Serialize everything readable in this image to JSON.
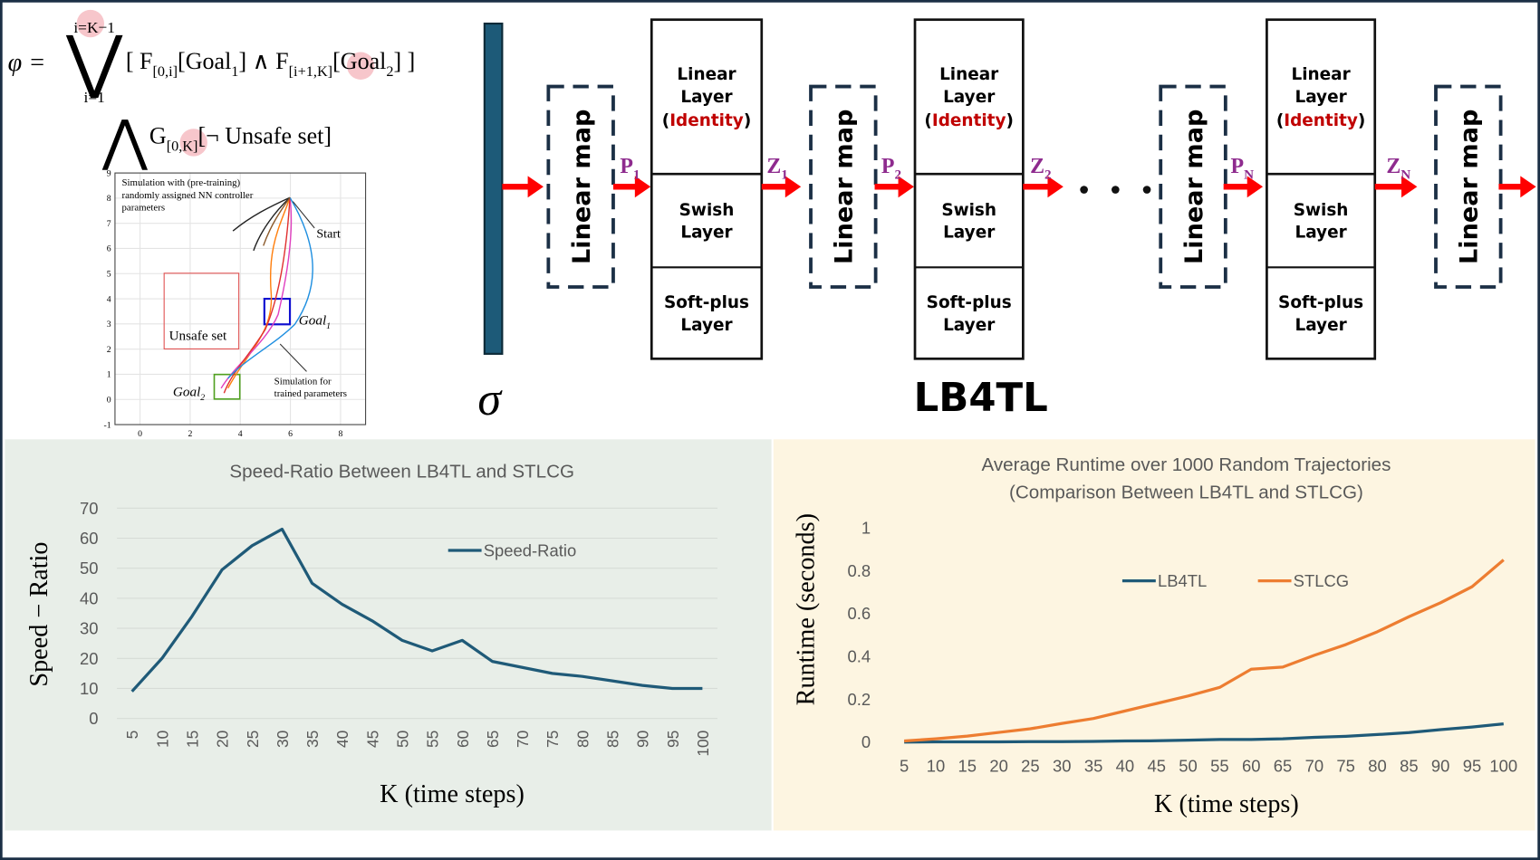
{
  "formula": {
    "phi": "φ =",
    "vee": "⋁",
    "upper": "i=K−1",
    "lower": "i=1",
    "expr1": [
      {
        "text": "[ F"
      },
      {
        "sub": "[0,i]"
      },
      {
        "text": "[Goal"
      },
      {
        "sub": "1"
      },
      {
        "text": "] ∧ F"
      },
      {
        "sub": "[i+1,K]"
      },
      {
        "text": "[Goal"
      },
      {
        "sub": "2"
      },
      {
        "text": "] ]"
      }
    ],
    "wedge": "⋀",
    "expr2": [
      {
        "text": "G"
      },
      {
        "sub": "[0,K]"
      },
      {
        "text": "[¬ Unsafe set]"
      }
    ]
  },
  "inset": {
    "xlim": [
      -1,
      9
    ],
    "ylim": [
      -1,
      9
    ],
    "xticks": [
      0,
      2,
      4,
      6,
      8
    ],
    "yticks": [
      -1,
      0,
      1,
      2,
      3,
      4,
      5,
      6,
      7,
      8,
      9
    ],
    "pretraining_note": [
      "Simulation with (pre-training)",
      "randomly assigned NN controller",
      "parameters"
    ],
    "start": "Start",
    "goal1": [
      {
        "text": "Goal"
      },
      {
        "sub": "1"
      }
    ],
    "unsafe": "Unsafe set",
    "trained_note": [
      "Simulation for",
      "trained parameters"
    ],
    "goal2": [
      {
        "text": "Goal"
      },
      {
        "sub": "2"
      }
    ]
  },
  "diagram": {
    "sigma": "σ",
    "title": "LB4TL",
    "linear_map": "Linear map",
    "linear_layer": [
      "Linear",
      "Layer"
    ],
    "identity": {
      "open": "(",
      "word": "Identity",
      "close": ")"
    },
    "swish": [
      "Swish",
      "Layer"
    ],
    "softplus": [
      "Soft-plus",
      "Layer"
    ],
    "labels": [
      {
        "main": "P",
        "sub": "1"
      },
      {
        "main": "Z",
        "sub": "1"
      },
      {
        "main": "P",
        "sub": "2"
      },
      {
        "main": "Z",
        "sub": "2"
      },
      {
        "main": "P",
        "sub": "N"
      },
      {
        "main": "Z",
        "sub": "N"
      }
    ]
  },
  "chart_data": [
    {
      "type": "line",
      "title": "Speed-Ratio Between LB4TL and STLCG",
      "x_label": "K (time steps)",
      "y_label": "Speed − Ratio",
      "categories": [
        "5",
        "10",
        "15",
        "20",
        "25",
        "30",
        "35",
        "40",
        "45",
        "50",
        "55",
        "60",
        "65",
        "70",
        "75",
        "80",
        "85",
        "90",
        "95",
        "100"
      ],
      "series": [
        {
          "name": "Speed-Ratio",
          "color": "#1f5a78",
          "values": [
            9,
            20,
            34,
            49.5,
            57.5,
            63,
            45,
            38,
            32.5,
            26,
            22.5,
            26,
            19,
            17,
            15,
            14,
            12.5,
            11,
            10,
            10
          ]
        }
      ],
      "ylim": [
        0,
        70
      ],
      "yticks": [
        0,
        10,
        20,
        30,
        40,
        50,
        60,
        70
      ],
      "grid": true
    },
    {
      "type": "line",
      "title": "Average Runtime over 1000 Random Trajectories",
      "subtitle": "(Comparison Between LB4TL and STLCG)",
      "x_label": "K (time steps)",
      "y_label": "Runtime  (seconds)",
      "categories": [
        "5",
        "10",
        "15",
        "20",
        "25",
        "30",
        "35",
        "40",
        "45",
        "50",
        "55",
        "60",
        "65",
        "70",
        "75",
        "80",
        "85",
        "90",
        "95",
        "100"
      ],
      "series": [
        {
          "name": "LB4TL",
          "color": "#1f5a78",
          "values": [
            0,
            0.001,
            0.001,
            0.001,
            0.002,
            0.002,
            0.003,
            0.005,
            0.006,
            0.009,
            0.012,
            0.012,
            0.015,
            0.022,
            0.027,
            0.035,
            0.044,
            0.058,
            0.07,
            0.085
          ]
        },
        {
          "name": "STLCG",
          "color": "#ed7d31",
          "values": [
            0.005,
            0.015,
            0.028,
            0.045,
            0.062,
            0.087,
            0.11,
            0.145,
            0.18,
            0.215,
            0.255,
            0.34,
            0.35,
            0.405,
            0.455,
            0.515,
            0.585,
            0.65,
            0.725,
            0.85
          ]
        }
      ],
      "ylim": [
        0,
        1
      ],
      "yticks": [
        0,
        0.2,
        0.4,
        0.6,
        0.8,
        1
      ],
      "grid": false
    }
  ]
}
